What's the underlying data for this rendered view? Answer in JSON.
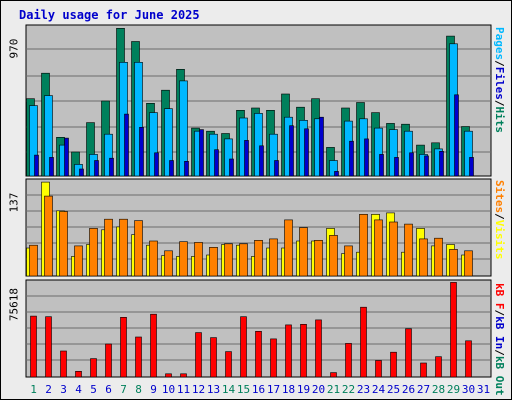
{
  "title": "Daily usage for June 2025",
  "colors": {
    "background": "#ececec",
    "panel": "#c0c0c0",
    "hits": "#00805c",
    "files": "#00b8ff",
    "pages": "#0000cc",
    "visits": "#ffff00",
    "sites": "#ff8000",
    "kb_in": "#0000cc",
    "kb_out": "#00805c",
    "kb_f": "#ff0000",
    "weekend_label": "#00805c",
    "weekday_label": "#0000cc"
  },
  "panels": {
    "top": {
      "max_label": "970",
      "side_labels": [
        {
          "text": "Pages",
          "color": "#00b8ff"
        },
        {
          "text": "/",
          "color": "#000000"
        },
        {
          "text": "Files",
          "color": "#0000cc"
        },
        {
          "text": "/",
          "color": "#000000"
        },
        {
          "text": "Hits",
          "color": "#00805c"
        }
      ]
    },
    "middle": {
      "max_label": "137",
      "side_labels": [
        {
          "text": "Sites",
          "color": "#ff8000"
        },
        {
          "text": "/",
          "color": "#000000"
        },
        {
          "text": "Visits",
          "color": "#ffff00"
        }
      ]
    },
    "bottom": {
      "max_label": "75618",
      "side_labels": [
        {
          "text": "kB F",
          "color": "#ff0000"
        },
        {
          "text": "/",
          "color": "#000000"
        },
        {
          "text": "kB In",
          "color": "#0000cc"
        },
        {
          "text": "/",
          "color": "#000000"
        },
        {
          "text": "kB Out",
          "color": "#00805c"
        }
      ]
    }
  },
  "chart_data": [
    {
      "type": "bar",
      "categories": [
        "1",
        "2",
        "3",
        "4",
        "5",
        "6",
        "7",
        "8",
        "9",
        "10",
        "11",
        "12",
        "13",
        "14",
        "15",
        "16",
        "17",
        "18",
        "19",
        "20",
        "21",
        "22",
        "23",
        "24",
        "25",
        "26",
        "27",
        "28",
        "29",
        "30",
        "31"
      ],
      "weekend_days": [
        "1",
        "7",
        "8",
        "14",
        "15",
        "21",
        "22",
        "28",
        "29"
      ],
      "ylim": [
        0,
        970
      ],
      "series": [
        {
          "name": "Hits",
          "values": [
            500,
            665,
            250,
            155,
            345,
            485,
            955,
            870,
            470,
            555,
            690,
            310,
            290,
            275,
            425,
            440,
            425,
            530,
            445,
            500,
            185,
            440,
            475,
            410,
            340,
            335,
            200,
            215,
            905,
            320,
            0
          ]
        },
        {
          "name": "Files",
          "values": [
            455,
            520,
            200,
            75,
            140,
            270,
            735,
            735,
            410,
            435,
            615,
            290,
            270,
            240,
            375,
            405,
            270,
            380,
            360,
            370,
            100,
            355,
            370,
            310,
            300,
            290,
            140,
            175,
            855,
            290,
            0
          ]
        },
        {
          "name": "Pages",
          "values": [
            135,
            120,
            245,
            45,
            100,
            115,
            400,
            315,
            150,
            100,
            95,
            300,
            170,
            110,
            230,
            195,
            100,
            325,
            305,
            380,
            30,
            225,
            240,
            140,
            120,
            150,
            130,
            160,
            525,
            120,
            0
          ]
        }
      ]
    },
    {
      "type": "bar",
      "categories": [
        "1",
        "2",
        "3",
        "4",
        "5",
        "6",
        "7",
        "8",
        "9",
        "10",
        "11",
        "12",
        "13",
        "14",
        "15",
        "16",
        "17",
        "18",
        "19",
        "20",
        "21",
        "22",
        "23",
        "24",
        "25",
        "26",
        "27",
        "28",
        "29",
        "30",
        "31"
      ],
      "ylim": [
        0,
        137
      ],
      "series": [
        {
          "name": "Visits",
          "values": [
            40,
            134,
            93,
            28,
            45,
            66,
            70,
            59,
            44,
            29,
            28,
            28,
            30,
            45,
            44,
            28,
            40,
            40,
            50,
            50,
            68,
            32,
            34,
            88,
            90,
            34,
            68,
            43,
            45,
            30,
            0
          ]
        },
        {
          "name": "Sites",
          "values": [
            44,
            114,
            92,
            43,
            68,
            81,
            81,
            79,
            50,
            36,
            49,
            48,
            41,
            46,
            46,
            51,
            53,
            80,
            69,
            51,
            58,
            43,
            88,
            80,
            77,
            74,
            53,
            54,
            38,
            36,
            0
          ]
        }
      ]
    },
    {
      "type": "bar",
      "categories": [
        "1",
        "2",
        "3",
        "4",
        "5",
        "6",
        "7",
        "8",
        "9",
        "10",
        "11",
        "12",
        "13",
        "14",
        "15",
        "16",
        "17",
        "18",
        "19",
        "20",
        "21",
        "22",
        "23",
        "24",
        "25",
        "26",
        "27",
        "28",
        "29",
        "30",
        "31"
      ],
      "ylim": [
        0,
        75618
      ],
      "series": [
        {
          "name": "kB F",
          "values": [
            48000,
            47500,
            20500,
            4500,
            14500,
            26000,
            47000,
            31500,
            49500,
            2500,
            2500,
            35000,
            31000,
            20000,
            47500,
            36000,
            30000,
            41000,
            41500,
            45000,
            3500,
            26500,
            55000,
            13000,
            19500,
            38000,
            11000,
            16000,
            74500,
            28500,
            0
          ]
        }
      ]
    }
  ]
}
